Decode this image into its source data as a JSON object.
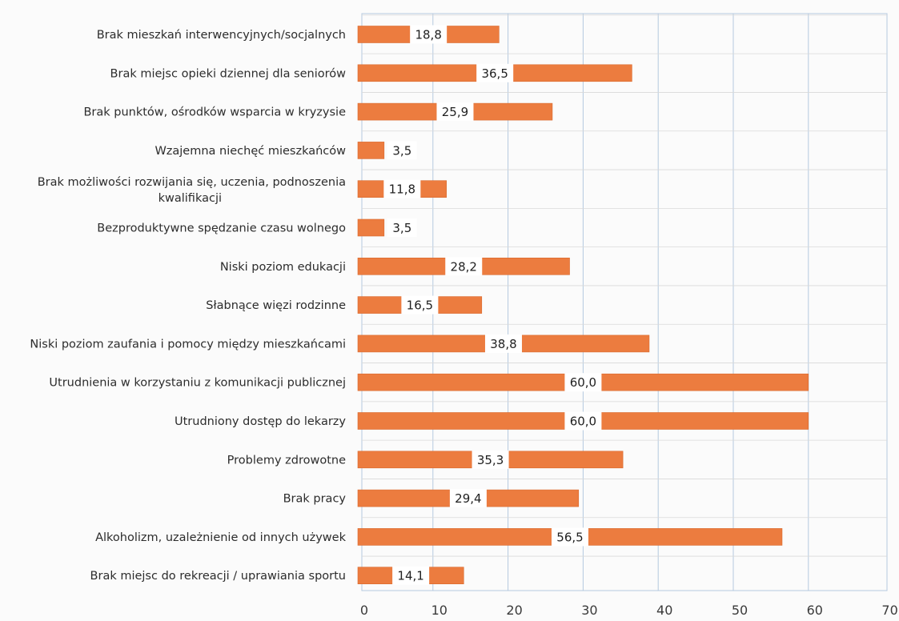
{
  "chart_data": {
    "type": "bar",
    "orientation": "horizontal",
    "categories": [
      "Brak mieszkań interwencyjnych/socjalnych",
      "Brak miejsc opieki dziennej dla seniorów",
      "Brak punktów, ośrodków wsparcia w kryzysie",
      "Wzajemna niechęć mieszkańców",
      "Brak możliwości rozwijania się, uczenia, podnoszenia kwalifikacji",
      "Bezproduktywne spędzanie czasu wolnego",
      "Niski poziom edukacji",
      "Słabnące więzi rodzinne",
      "Niski poziom zaufania i pomocy między mieszkańcami",
      "Utrudnienia w korzystaniu z komunikacji publicznej",
      "Utrudniony dostęp do lekarzy",
      "Problemy zdrowotne",
      "Brak pracy",
      "Alkoholizm, uzależnienie od innych używek",
      "Brak miejsc do rekreacji / uprawiania sportu"
    ],
    "values": [
      18.8,
      36.5,
      25.9,
      3.5,
      11.8,
      3.5,
      28.2,
      16.5,
      38.8,
      60.0,
      60.0,
      35.3,
      29.4,
      56.5,
      14.1
    ],
    "value_labels": [
      "18,8",
      "36,5",
      "25,9",
      "3,5",
      "11,8",
      "3,5",
      "28,2",
      "16,5",
      "38,8",
      "60,0",
      "60,0",
      "35,3",
      "29,4",
      "56,5",
      "14,1"
    ],
    "x_ticks": [
      "0",
      "10",
      "20",
      "30",
      "40",
      "50",
      "60",
      "70"
    ],
    "xlim": [
      0,
      70
    ],
    "title": "",
    "xlabel": "",
    "ylabel": "",
    "grid": true,
    "legend": false,
    "colors": {
      "bar": "#ec7c3f",
      "bar_edge": "#d9692d",
      "grid": "#b4c9df",
      "label_bg": "#ffffff"
    }
  }
}
